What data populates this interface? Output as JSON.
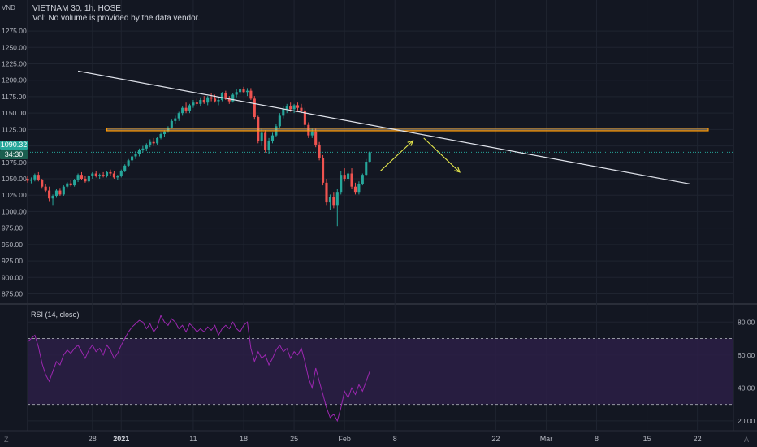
{
  "header": {
    "currency": "VND",
    "symbol_line": "VIETNAM 30, 1h, HOSE",
    "volume_note": "Vol: No volume is provided by the data vendor."
  },
  "rsi_header": {
    "label": "RSI (14, close)"
  },
  "price_tags": {
    "last_price": "1090.32",
    "countdown": "34:30"
  },
  "corners": {
    "left": "Z",
    "right": "A"
  },
  "colors": {
    "background": "#131722",
    "grid": "#1f2430",
    "up": "#26a69a",
    "down": "#ef5350",
    "trendline": "#e0e3eb",
    "zone_fill": "#f5d9a6",
    "zone_border": "#ff9800",
    "arrow": "#e6e84c",
    "rsi_line": "#9c27b0",
    "rsi_band": "#2b1f45",
    "last_price_tag": "#26a69a",
    "countdown_tag": "#1b5e4f"
  },
  "chart_data": [
    {
      "type": "candlestick",
      "title": "VIETNAM 30, 1h, HOSE",
      "y_axis_side": "right",
      "y_ticks": [
        "1275.00",
        "1250.00",
        "1225.00",
        "1200.00",
        "1175.00",
        "1150.00",
        "1125.00",
        "1100.00",
        "1075.00",
        "1050.00",
        "1025.00",
        "1000.00",
        "975.00",
        "950.00",
        "925.00",
        "900.00",
        "875.00"
      ],
      "ylim": [
        862,
        1285
      ],
      "x_ticks": [
        "28",
        "2021",
        "11",
        "18",
        "25",
        "Feb",
        "8",
        "22",
        "Mar",
        "8",
        "15",
        "22"
      ],
      "x_tick_days": [
        -4,
        0,
        10,
        17,
        24,
        31,
        38,
        52,
        59,
        66,
        73,
        80
      ],
      "xlim": [
        -13,
        85
      ],
      "last_price": 1090.32,
      "candles": [
        [
          -13,
          1050,
          1054,
          1044,
          1047
        ],
        [
          -12.5,
          1047,
          1052,
          1043,
          1049
        ],
        [
          -12,
          1049,
          1058,
          1046,
          1056
        ],
        [
          -11.5,
          1056,
          1060,
          1046,
          1048
        ],
        [
          -11,
          1048,
          1050,
          1036,
          1038
        ],
        [
          -10.5,
          1038,
          1042,
          1030,
          1032
        ],
        [
          -10,
          1032,
          1038,
          1016,
          1020
        ],
        [
          -9.5,
          1020,
          1026,
          1010,
          1024
        ],
        [
          -9,
          1024,
          1034,
          1021,
          1032
        ],
        [
          -8.5,
          1032,
          1036,
          1024,
          1026
        ],
        [
          -8,
          1026,
          1040,
          1024,
          1038
        ],
        [
          -7.5,
          1038,
          1045,
          1036,
          1043
        ],
        [
          -7,
          1043,
          1048,
          1038,
          1040
        ],
        [
          -6.5,
          1040,
          1050,
          1038,
          1048
        ],
        [
          -6,
          1048,
          1058,
          1045,
          1056
        ],
        [
          -5.5,
          1056,
          1060,
          1048,
          1050
        ],
        [
          -5,
          1050,
          1054,
          1044,
          1046
        ],
        [
          -4.5,
          1046,
          1056,
          1044,
          1054
        ],
        [
          -4,
          1054,
          1060,
          1050,
          1058
        ],
        [
          -3.5,
          1058,
          1062,
          1052,
          1054
        ],
        [
          -3,
          1054,
          1058,
          1050,
          1056
        ],
        [
          -2.5,
          1056,
          1060,
          1052,
          1054
        ],
        [
          -2,
          1054,
          1062,
          1052,
          1060
        ],
        [
          -1.5,
          1060,
          1064,
          1055,
          1058
        ],
        [
          -1,
          1058,
          1062,
          1050,
          1052
        ],
        [
          -0.5,
          1052,
          1056,
          1048,
          1054
        ],
        [
          0,
          1054,
          1064,
          1052,
          1062
        ],
        [
          0.5,
          1062,
          1072,
          1060,
          1070
        ],
        [
          1,
          1070,
          1080,
          1068,
          1078
        ],
        [
          1.5,
          1078,
          1086,
          1074,
          1084
        ],
        [
          2,
          1084,
          1092,
          1080,
          1088
        ],
        [
          2.5,
          1088,
          1096,
          1084,
          1094
        ],
        [
          3,
          1094,
          1100,
          1090,
          1096
        ],
        [
          3.5,
          1096,
          1104,
          1092,
          1102
        ],
        [
          4,
          1102,
          1110,
          1098,
          1106
        ],
        [
          4.5,
          1106,
          1112,
          1100,
          1104
        ],
        [
          5,
          1104,
          1114,
          1102,
          1112
        ],
        [
          5.5,
          1112,
          1120,
          1110,
          1118
        ],
        [
          6,
          1118,
          1124,
          1114,
          1122
        ],
        [
          6.5,
          1122,
          1130,
          1120,
          1128
        ],
        [
          7,
          1128,
          1140,
          1126,
          1138
        ],
        [
          7.5,
          1138,
          1146,
          1134,
          1142
        ],
        [
          8,
          1142,
          1152,
          1138,
          1150
        ],
        [
          8.5,
          1150,
          1160,
          1146,
          1158
        ],
        [
          9,
          1158,
          1166,
          1150,
          1154
        ],
        [
          9.5,
          1154,
          1164,
          1150,
          1162
        ],
        [
          10,
          1162,
          1170,
          1158,
          1166
        ],
        [
          10.5,
          1166,
          1172,
          1160,
          1164
        ],
        [
          11,
          1164,
          1174,
          1160,
          1170
        ],
        [
          11.5,
          1170,
          1176,
          1164,
          1166
        ],
        [
          12,
          1166,
          1176,
          1162,
          1174
        ],
        [
          12.5,
          1174,
          1180,
          1168,
          1172
        ],
        [
          13,
          1172,
          1178,
          1166,
          1168
        ],
        [
          13.5,
          1168,
          1174,
          1162,
          1170
        ],
        [
          14,
          1170,
          1182,
          1168,
          1180
        ],
        [
          14.5,
          1180,
          1184,
          1170,
          1172
        ],
        [
          15,
          1172,
          1176,
          1164,
          1168
        ],
        [
          15.5,
          1168,
          1180,
          1166,
          1178
        ],
        [
          16,
          1178,
          1186,
          1174,
          1182
        ],
        [
          16.5,
          1182,
          1188,
          1178,
          1186
        ],
        [
          17,
          1186,
          1190,
          1180,
          1182
        ],
        [
          17.5,
          1182,
          1188,
          1176,
          1184
        ],
        [
          18,
          1184,
          1188,
          1170,
          1172
        ],
        [
          18.5,
          1172,
          1176,
          1140,
          1144
        ],
        [
          19,
          1144,
          1146,
          1104,
          1108
        ],
        [
          19.5,
          1108,
          1126,
          1100,
          1120
        ],
        [
          20,
          1120,
          1124,
          1090,
          1094
        ],
        [
          20.5,
          1094,
          1112,
          1088,
          1108
        ],
        [
          21,
          1108,
          1120,
          1104,
          1116
        ],
        [
          21.5,
          1116,
          1134,
          1114,
          1130
        ],
        [
          22,
          1130,
          1150,
          1128,
          1146
        ],
        [
          22.5,
          1146,
          1160,
          1142,
          1156
        ],
        [
          23,
          1156,
          1164,
          1150,
          1160
        ],
        [
          23.5,
          1160,
          1166,
          1152,
          1156
        ],
        [
          24,
          1156,
          1164,
          1150,
          1162
        ],
        [
          24.5,
          1162,
          1166,
          1154,
          1158
        ],
        [
          25,
          1158,
          1164,
          1150,
          1154
        ],
        [
          25.5,
          1154,
          1158,
          1128,
          1132
        ],
        [
          26,
          1132,
          1136,
          1112,
          1116
        ],
        [
          26.5,
          1116,
          1126,
          1112,
          1122
        ],
        [
          27,
          1122,
          1126,
          1098,
          1102
        ],
        [
          27.5,
          1102,
          1106,
          1078,
          1082
        ],
        [
          28,
          1082,
          1086,
          1040,
          1044
        ],
        [
          28.5,
          1044,
          1050,
          1010,
          1014
        ],
        [
          29,
          1014,
          1026,
          1002,
          1022
        ],
        [
          29.5,
          1022,
          1030,
          1005,
          1010
        ],
        [
          30,
          1010,
          1034,
          978,
          1030
        ],
        [
          30.5,
          1030,
          1062,
          1026,
          1056
        ],
        [
          31,
          1056,
          1066,
          1046,
          1050
        ],
        [
          31.5,
          1050,
          1062,
          1046,
          1058
        ],
        [
          32,
          1058,
          1066,
          1034,
          1038
        ],
        [
          32.5,
          1038,
          1044,
          1026,
          1030
        ],
        [
          33,
          1030,
          1046,
          1026,
          1042
        ],
        [
          33.5,
          1042,
          1058,
          1040,
          1056
        ],
        [
          34,
          1056,
          1080,
          1054,
          1076
        ],
        [
          34.5,
          1076,
          1092,
          1074,
          1090.32
        ]
      ],
      "annotations": {
        "trendline": {
          "from": [
            -6,
            1214
          ],
          "to": [
            79,
            1042
          ]
        },
        "horizontal_zone": {
          "y_top": 1127,
          "y_bottom": 1123,
          "x_from": -2,
          "x_to": 81.5
        },
        "arrow_up": {
          "from": [
            36,
            1062
          ],
          "to": [
            40.5,
            1108
          ]
        },
        "arrow_down": {
          "from": [
            42,
            1112
          ],
          "to": [
            47,
            1060
          ]
        }
      }
    },
    {
      "type": "line",
      "title": "RSI (14, close)",
      "y_ticks": [
        "80.00",
        "60.00",
        "40.00",
        "20.00"
      ],
      "ylim": [
        15,
        90
      ],
      "bands": {
        "upper": 70,
        "lower": 30
      },
      "series": [
        {
          "name": "RSI (14, close)",
          "x": [
            -13,
            -12.5,
            -12,
            -11.5,
            -11,
            -10.5,
            -10,
            -9.5,
            -9,
            -8.5,
            -8,
            -7.5,
            -7,
            -6.5,
            -6,
            -5.5,
            -5,
            -4.5,
            -4,
            -3.5,
            -3,
            -2.5,
            -2,
            -1.5,
            -1,
            -0.5,
            0,
            0.5,
            1,
            1.5,
            2,
            2.5,
            3,
            3.5,
            4,
            4.5,
            5,
            5.5,
            6,
            6.5,
            7,
            7.5,
            8,
            8.5,
            9,
            9.5,
            10,
            10.5,
            11,
            11.5,
            12,
            12.5,
            13,
            13.5,
            14,
            14.5,
            15,
            15.5,
            16,
            16.5,
            17,
            17.5,
            18,
            18.5,
            19,
            19.5,
            20,
            20.5,
            21,
            21.5,
            22,
            22.5,
            23,
            23.5,
            24,
            24.5,
            25,
            25.5,
            26,
            26.5,
            27,
            27.5,
            28,
            28.5,
            29,
            29.5,
            30,
            30.5,
            31,
            31.5,
            32,
            32.5,
            33,
            33.5,
            34,
            34.5
          ],
          "values": [
            68,
            70,
            72,
            65,
            55,
            48,
            44,
            50,
            56,
            54,
            60,
            63,
            61,
            64,
            66,
            62,
            58,
            63,
            66,
            62,
            64,
            60,
            66,
            63,
            58,
            61,
            66,
            70,
            74,
            77,
            79,
            81,
            80,
            76,
            79,
            74,
            77,
            84,
            80,
            78,
            82,
            80,
            76,
            78,
            74,
            79,
            77,
            74,
            76,
            74,
            77,
            75,
            78,
            72,
            76,
            78,
            76,
            80,
            76,
            74,
            78,
            80,
            64,
            56,
            62,
            58,
            60,
            54,
            58,
            63,
            66,
            62,
            64,
            58,
            62,
            60,
            64,
            56,
            46,
            40,
            52,
            44,
            36,
            28,
            22,
            24,
            20,
            28,
            38,
            34,
            40,
            36,
            42,
            38,
            44,
            50
          ]
        }
      ]
    }
  ]
}
